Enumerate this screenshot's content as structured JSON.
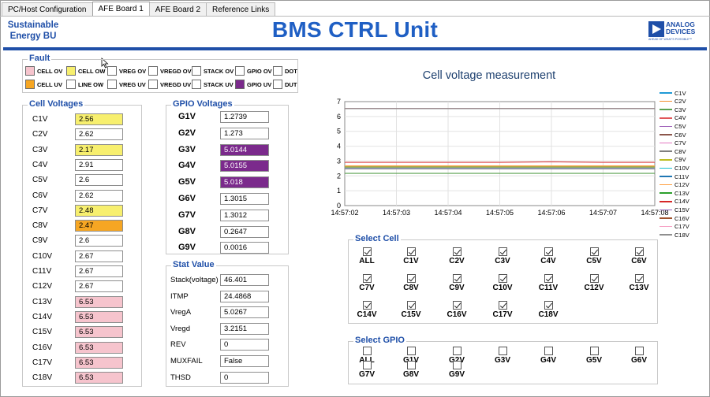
{
  "tabs": [
    {
      "label": "PC/Host Configuration",
      "active": false
    },
    {
      "label": "AFE Board 1",
      "active": true
    },
    {
      "label": "AFE Board 2",
      "active": false
    },
    {
      "label": "Reference Links",
      "active": false
    }
  ],
  "header": {
    "brand_line1": "Sustainable",
    "brand_line2": "Energy BU",
    "title": "BMS CTRL Unit",
    "logo_line1": "ANALOG",
    "logo_line2": "DEVICES",
    "logo_tagline": "AHEAD OF WHAT'S POSSIBLE™",
    "accent": "#1f4fa8"
  },
  "fault": {
    "title": "Fault",
    "row1": [
      {
        "label": "CELL OV",
        "color": "#f6c4cd"
      },
      {
        "label": "CELL OW",
        "color": "#f7ef6e"
      },
      {
        "label": "VREG OV",
        "color": "#ffffff"
      },
      {
        "label": "VREGD OV",
        "color": "#ffffff"
      },
      {
        "label": "STACK OV",
        "color": "#ffffff"
      },
      {
        "label": "GPIO OV",
        "color": "#ffffff"
      },
      {
        "label": "DOT",
        "color": "#ffffff"
      }
    ],
    "row2": [
      {
        "label": "CELL UV",
        "color": "#f6a623"
      },
      {
        "label": "LINE OW",
        "color": "#ffffff"
      },
      {
        "label": "VREG UV",
        "color": "#ffffff"
      },
      {
        "label": "VREGD UV",
        "color": "#ffffff"
      },
      {
        "label": "STACK UV",
        "color": "#ffffff"
      },
      {
        "label": "GPIO UV",
        "color": "#7b2a8c"
      },
      {
        "label": "DUT",
        "color": "#ffffff"
      }
    ]
  },
  "cell_voltages": {
    "title": "Cell Voltages",
    "items": [
      {
        "label": "C1V",
        "value": "2.56",
        "state": "yellow"
      },
      {
        "label": "C2V",
        "value": "2.62",
        "state": ""
      },
      {
        "label": "C3V",
        "value": "2.17",
        "state": "yellow"
      },
      {
        "label": "C4V",
        "value": "2.91",
        "state": ""
      },
      {
        "label": "C5V",
        "value": "2.6",
        "state": ""
      },
      {
        "label": "C6V",
        "value": "2.62",
        "state": ""
      },
      {
        "label": "C7V",
        "value": "2.48",
        "state": "yellow"
      },
      {
        "label": "C8V",
        "value": "2.47",
        "state": "orange"
      },
      {
        "label": "C9V",
        "value": "2.6",
        "state": ""
      },
      {
        "label": "C10V",
        "value": "2.67",
        "state": ""
      },
      {
        "label": "C11V",
        "value": "2.67",
        "state": ""
      },
      {
        "label": "C12V",
        "value": "2.67",
        "state": ""
      },
      {
        "label": "C13V",
        "value": "6.53",
        "state": "pink"
      },
      {
        "label": "C14V",
        "value": "6.53",
        "state": "pink"
      },
      {
        "label": "C15V",
        "value": "6.53",
        "state": "pink"
      },
      {
        "label": "C16V",
        "value": "6.53",
        "state": "pink"
      },
      {
        "label": "C17V",
        "value": "6.53",
        "state": "pink"
      },
      {
        "label": "C18V",
        "value": "6.53",
        "state": "pink"
      }
    ]
  },
  "gpio_voltages": {
    "title": "GPIO Voltages",
    "items": [
      {
        "label": "G1V",
        "value": "1.2739",
        "state": ""
      },
      {
        "label": "G2V",
        "value": "1.273",
        "state": ""
      },
      {
        "label": "G3V",
        "value": "5.0144",
        "state": "purple"
      },
      {
        "label": "G4V",
        "value": "5.0155",
        "state": "purple"
      },
      {
        "label": "G5V",
        "value": "5.018",
        "state": "purple"
      },
      {
        "label": "G6V",
        "value": "1.3015",
        "state": ""
      },
      {
        "label": "G7V",
        "value": "1.3012",
        "state": ""
      },
      {
        "label": "G8V",
        "value": "0.2647",
        "state": ""
      },
      {
        "label": "G9V",
        "value": "0.0016",
        "state": ""
      }
    ]
  },
  "stat_value": {
    "title": "Stat Value",
    "items": [
      {
        "label": "Stack(voltage)",
        "value": "46.401"
      },
      {
        "label": "ITMP",
        "value": "24.4868"
      },
      {
        "label": "VregA",
        "value": "5.0267"
      },
      {
        "label": "Vregd",
        "value": "3.2151"
      },
      {
        "label": "REV",
        "value": "0"
      },
      {
        "label": "MUXFAIL",
        "value": "False"
      },
      {
        "label": "THSD",
        "value": "0"
      }
    ]
  },
  "chart_data": {
    "type": "line",
    "title": "Cell voltage measurement",
    "x": [
      "14:57:02",
      "14:57:03",
      "14:57:04",
      "14:57:05",
      "14:57:06",
      "14:57:07",
      "14:57:08"
    ],
    "ylim": [
      0,
      7
    ],
    "yticks": [
      0,
      1,
      2,
      3,
      4,
      5,
      6,
      7
    ],
    "grid": true,
    "legend_position": "right",
    "series": [
      {
        "name": "C1V",
        "color": "#1f9ad6",
        "values": [
          2.56,
          2.56,
          2.56,
          2.56,
          2.56,
          2.56,
          2.56
        ]
      },
      {
        "name": "C2V",
        "color": "#f28e2b",
        "values": [
          2.62,
          2.62,
          2.62,
          2.62,
          2.62,
          2.62,
          2.62
        ]
      },
      {
        "name": "C3V",
        "color": "#59a14f",
        "values": [
          2.17,
          2.17,
          2.17,
          2.17,
          2.17,
          2.17,
          2.17
        ]
      },
      {
        "name": "C4V",
        "color": "#e15759",
        "values": [
          2.91,
          2.91,
          2.91,
          2.91,
          2.95,
          2.91,
          2.91
        ]
      },
      {
        "name": "C5V",
        "color": "#9b59b6",
        "values": [
          2.6,
          2.6,
          2.6,
          2.6,
          2.6,
          2.6,
          2.6
        ]
      },
      {
        "name": "C6V",
        "color": "#8c564b",
        "values": [
          2.62,
          2.62,
          2.62,
          2.62,
          2.62,
          2.62,
          2.62
        ]
      },
      {
        "name": "C7V",
        "color": "#e377c2",
        "values": [
          2.48,
          2.48,
          2.48,
          2.48,
          2.48,
          2.48,
          2.48
        ]
      },
      {
        "name": "C8V",
        "color": "#7f7f7f",
        "values": [
          2.47,
          2.47,
          2.47,
          2.47,
          2.47,
          2.47,
          2.47
        ]
      },
      {
        "name": "C9V",
        "color": "#bcbd22",
        "values": [
          2.6,
          2.6,
          2.6,
          2.6,
          2.6,
          2.6,
          2.6
        ]
      },
      {
        "name": "C10V",
        "color": "#17becf",
        "values": [
          2.67,
          2.67,
          2.67,
          2.67,
          2.67,
          2.67,
          2.67
        ]
      },
      {
        "name": "C11V",
        "color": "#1f77b4",
        "values": [
          2.67,
          2.67,
          2.67,
          2.67,
          2.67,
          2.67,
          2.67
        ]
      },
      {
        "name": "C12V",
        "color": "#ff9f40",
        "values": [
          2.67,
          2.67,
          2.67,
          2.67,
          2.67,
          2.67,
          2.67
        ]
      },
      {
        "name": "C13V",
        "color": "#2ca02c",
        "values": [
          6.53,
          6.53,
          6.53,
          6.53,
          6.53,
          6.53,
          6.53
        ]
      },
      {
        "name": "C14V",
        "color": "#d62728",
        "values": [
          6.53,
          6.53,
          6.53,
          6.53,
          6.53,
          6.53,
          6.53
        ]
      },
      {
        "name": "C15V",
        "color": "#9467bd",
        "values": [
          6.53,
          6.53,
          6.53,
          6.53,
          6.53,
          6.53,
          6.53
        ]
      },
      {
        "name": "C16V",
        "color": "#a0522d",
        "values": [
          6.53,
          6.53,
          6.53,
          6.53,
          6.53,
          6.53,
          6.53
        ]
      },
      {
        "name": "C17V",
        "color": "#f7a1c4",
        "values": [
          6.53,
          6.53,
          6.53,
          6.53,
          6.53,
          6.53,
          6.53
        ]
      },
      {
        "name": "C18V",
        "color": "#8f8f8f",
        "values": [
          6.53,
          6.53,
          6.53,
          6.53,
          6.53,
          6.53,
          6.53
        ]
      }
    ]
  },
  "select_cell": {
    "title": "Select Cell",
    "items": [
      {
        "label": "ALL",
        "checked": true
      },
      {
        "label": "C1V",
        "checked": true
      },
      {
        "label": "C2V",
        "checked": true
      },
      {
        "label": "C3V",
        "checked": true
      },
      {
        "label": "C4V",
        "checked": true
      },
      {
        "label": "C5V",
        "checked": true
      },
      {
        "label": "C6V",
        "checked": true
      },
      {
        "label": "C7V",
        "checked": true
      },
      {
        "label": "C8V",
        "checked": true
      },
      {
        "label": "C9V",
        "checked": true
      },
      {
        "label": "C10V",
        "checked": true
      },
      {
        "label": "C11V",
        "checked": true
      },
      {
        "label": "C12V",
        "checked": true
      },
      {
        "label": "C13V",
        "checked": true
      },
      {
        "label": "C14V",
        "checked": true
      },
      {
        "label": "C15V",
        "checked": true
      },
      {
        "label": "C16V",
        "checked": true
      },
      {
        "label": "C17V",
        "checked": true
      },
      {
        "label": "C18V",
        "checked": true
      }
    ]
  },
  "select_gpio": {
    "title": "Select GPIO",
    "items": [
      {
        "label": "ALL",
        "checked": false
      },
      {
        "label": "G1V",
        "checked": false
      },
      {
        "label": "G2V",
        "checked": false
      },
      {
        "label": "G3V",
        "checked": false
      },
      {
        "label": "G4V",
        "checked": false
      },
      {
        "label": "G5V",
        "checked": false
      },
      {
        "label": "G6V",
        "checked": false
      },
      {
        "label": "G7V",
        "checked": false
      },
      {
        "label": "G8V",
        "checked": false
      },
      {
        "label": "G9V",
        "checked": false
      }
    ]
  }
}
